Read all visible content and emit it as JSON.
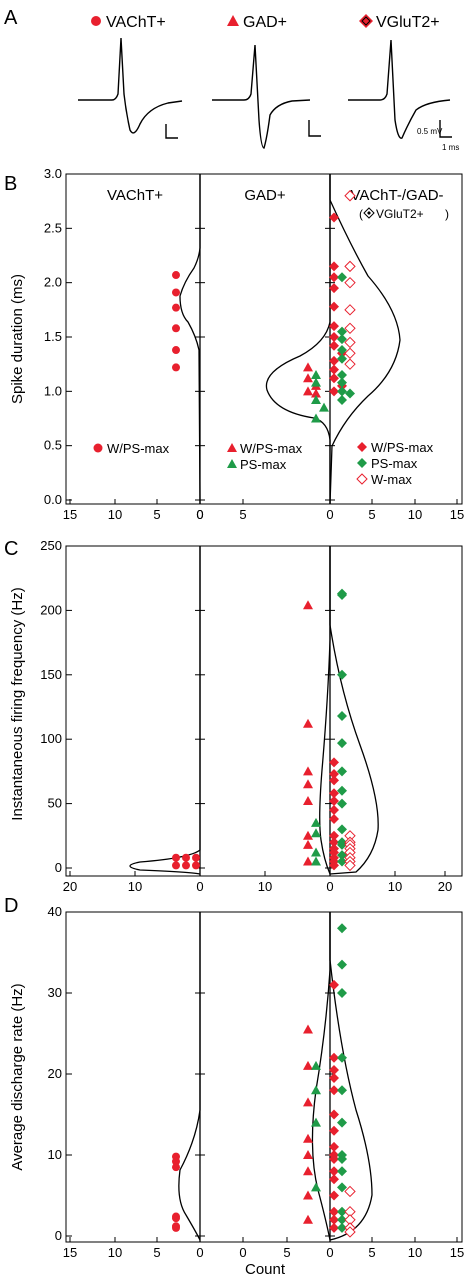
{
  "panels": {
    "A": {
      "letter": "A"
    },
    "B": {
      "letter": "B"
    },
    "C": {
      "letter": "C"
    },
    "D": {
      "letter": "D"
    }
  },
  "legends": {
    "vacht": "VAChT+",
    "gad": "GAD+",
    "vglut": "VGluT2+"
  },
  "scalebar": {
    "amp": "0.5 mV",
    "time": "1 ms"
  },
  "colors": {
    "red": "#e8202e",
    "green": "#1f9b48",
    "pink_outline": "#e8202e",
    "black": "#000000"
  },
  "chart_data": [
    {
      "panel": "B",
      "type": "scatter",
      "ylabel": "Spike duration (ms)",
      "ylim": [
        0,
        3.0
      ],
      "yticks": [
        "0.0",
        "0.5",
        "1.0",
        "1.5",
        "2.0",
        "2.5",
        "3.0"
      ],
      "xticks": [
        "15",
        "10",
        "5",
        "0",
        "0",
        "5",
        "0",
        "5",
        "10",
        "15"
      ],
      "column_titles": {
        "vacht": "VAChT+",
        "gad": "GAD+",
        "other": "VAChT-/GAD-",
        "vglut_note": "VGluT2+"
      },
      "legend_labels": {
        "vacht_wps": "W/PS-max",
        "gad_wps": "W/PS-max",
        "gad_ps": "PS-max",
        "other_wps": "W/PS-max",
        "other_ps": "PS-max",
        "other_w": "W-max"
      },
      "series": [
        {
          "group": "VAChT+",
          "marker": "circle",
          "color": "red",
          "values": [
            2.07,
            1.91,
            1.77,
            1.58,
            1.38,
            1.22
          ]
        },
        {
          "group": "GAD+",
          "marker": "triangle",
          "color": "red",
          "values": [
            1.22,
            1.12,
            1.05,
            1.0,
            0.98
          ]
        },
        {
          "group": "GAD+",
          "marker": "triangle",
          "color": "green",
          "values": [
            1.15,
            1.08,
            0.92,
            0.85,
            0.75
          ]
        },
        {
          "group": "VAChT-/GAD-",
          "marker": "diamond",
          "color": "red",
          "values": [
            2.6,
            2.15,
            2.05,
            1.95,
            1.78,
            1.6,
            1.5,
            1.42,
            1.35,
            1.28,
            1.2,
            1.12,
            1.05,
            1.0
          ]
        },
        {
          "group": "VAChT-/GAD-",
          "marker": "diamond",
          "color": "green",
          "values": [
            2.05,
            1.55,
            1.48,
            1.38,
            1.3,
            1.15,
            1.08,
            1.0,
            0.98,
            0.92
          ]
        },
        {
          "group": "VAChT-/GAD-",
          "marker": "diamond-open",
          "color": "pink",
          "values": [
            2.8,
            2.15,
            2.0,
            1.75,
            1.58,
            1.45,
            1.35,
            1.25
          ]
        }
      ]
    },
    {
      "panel": "C",
      "type": "scatter",
      "ylabel": "Instantaneous firing frequency (Hz)",
      "ylim": [
        0,
        250
      ],
      "yticks": [
        "0",
        "50",
        "100",
        "150",
        "200",
        "250"
      ],
      "xticks": [
        "20",
        "10",
        "0",
        "10",
        "0",
        "10",
        "20"
      ],
      "series": [
        {
          "group": "VAChT+",
          "marker": "circle",
          "color": "red",
          "values": [
            8,
            8,
            8,
            2,
            2,
            2
          ]
        },
        {
          "group": "GAD+",
          "marker": "triangle",
          "color": "red",
          "values": [
            204,
            112,
            75,
            65,
            52,
            25,
            18,
            5
          ]
        },
        {
          "group": "GAD+",
          "marker": "triangle",
          "color": "green",
          "values": [
            35,
            27,
            12,
            5
          ]
        },
        {
          "group": "VAChT-/GAD-",
          "marker": "diamond",
          "color": "red",
          "values": [
            82,
            73,
            68,
            58,
            52,
            45,
            38,
            25,
            20,
            15,
            12,
            8,
            5,
            2
          ]
        },
        {
          "group": "VAChT-/GAD-",
          "marker": "diamond",
          "color": "green",
          "values": [
            212,
            213,
            150,
            118,
            97,
            75,
            60,
            50,
            30,
            20,
            18,
            10,
            5
          ]
        },
        {
          "group": "VAChT-/GAD-",
          "marker": "diamond-open",
          "color": "pink",
          "values": [
            25,
            20,
            18,
            15,
            12,
            8,
            5,
            2
          ]
        }
      ]
    },
    {
      "panel": "D",
      "type": "scatter",
      "ylabel": "Average discharge rate (Hz)",
      "xlabel": "Count",
      "ylim": [
        0,
        40
      ],
      "yticks": [
        "0",
        "10",
        "20",
        "30",
        "40"
      ],
      "xticks": [
        "15",
        "10",
        "5",
        "0",
        "0",
        "5",
        "0",
        "5",
        "10",
        "15"
      ],
      "series": [
        {
          "group": "VAChT+",
          "marker": "circle",
          "color": "red",
          "values": [
            9.8,
            9.2,
            8.5,
            2.4,
            2.2,
            1.2,
            1.0
          ]
        },
        {
          "group": "GAD+",
          "marker": "triangle",
          "color": "red",
          "values": [
            25.5,
            21,
            16.5,
            12,
            10,
            8,
            5,
            2
          ]
        },
        {
          "group": "GAD+",
          "marker": "triangle",
          "color": "green",
          "values": [
            21,
            18,
            14,
            6
          ]
        },
        {
          "group": "VAChT-/GAD-",
          "marker": "diamond",
          "color": "red",
          "values": [
            31,
            22,
            20.5,
            19.5,
            18,
            15,
            13,
            11,
            10,
            9.5,
            8,
            7,
            5,
            3,
            2,
            1
          ]
        },
        {
          "group": "VAChT-/GAD-",
          "marker": "diamond",
          "color": "green",
          "values": [
            38,
            33.5,
            30,
            22,
            18,
            14,
            10,
            9.5,
            8,
            6,
            3,
            2,
            1
          ]
        },
        {
          "group": "VAChT-/GAD-",
          "marker": "diamond-open",
          "color": "pink",
          "values": [
            5.5,
            3,
            2,
            1,
            0.5
          ]
        }
      ]
    }
  ]
}
